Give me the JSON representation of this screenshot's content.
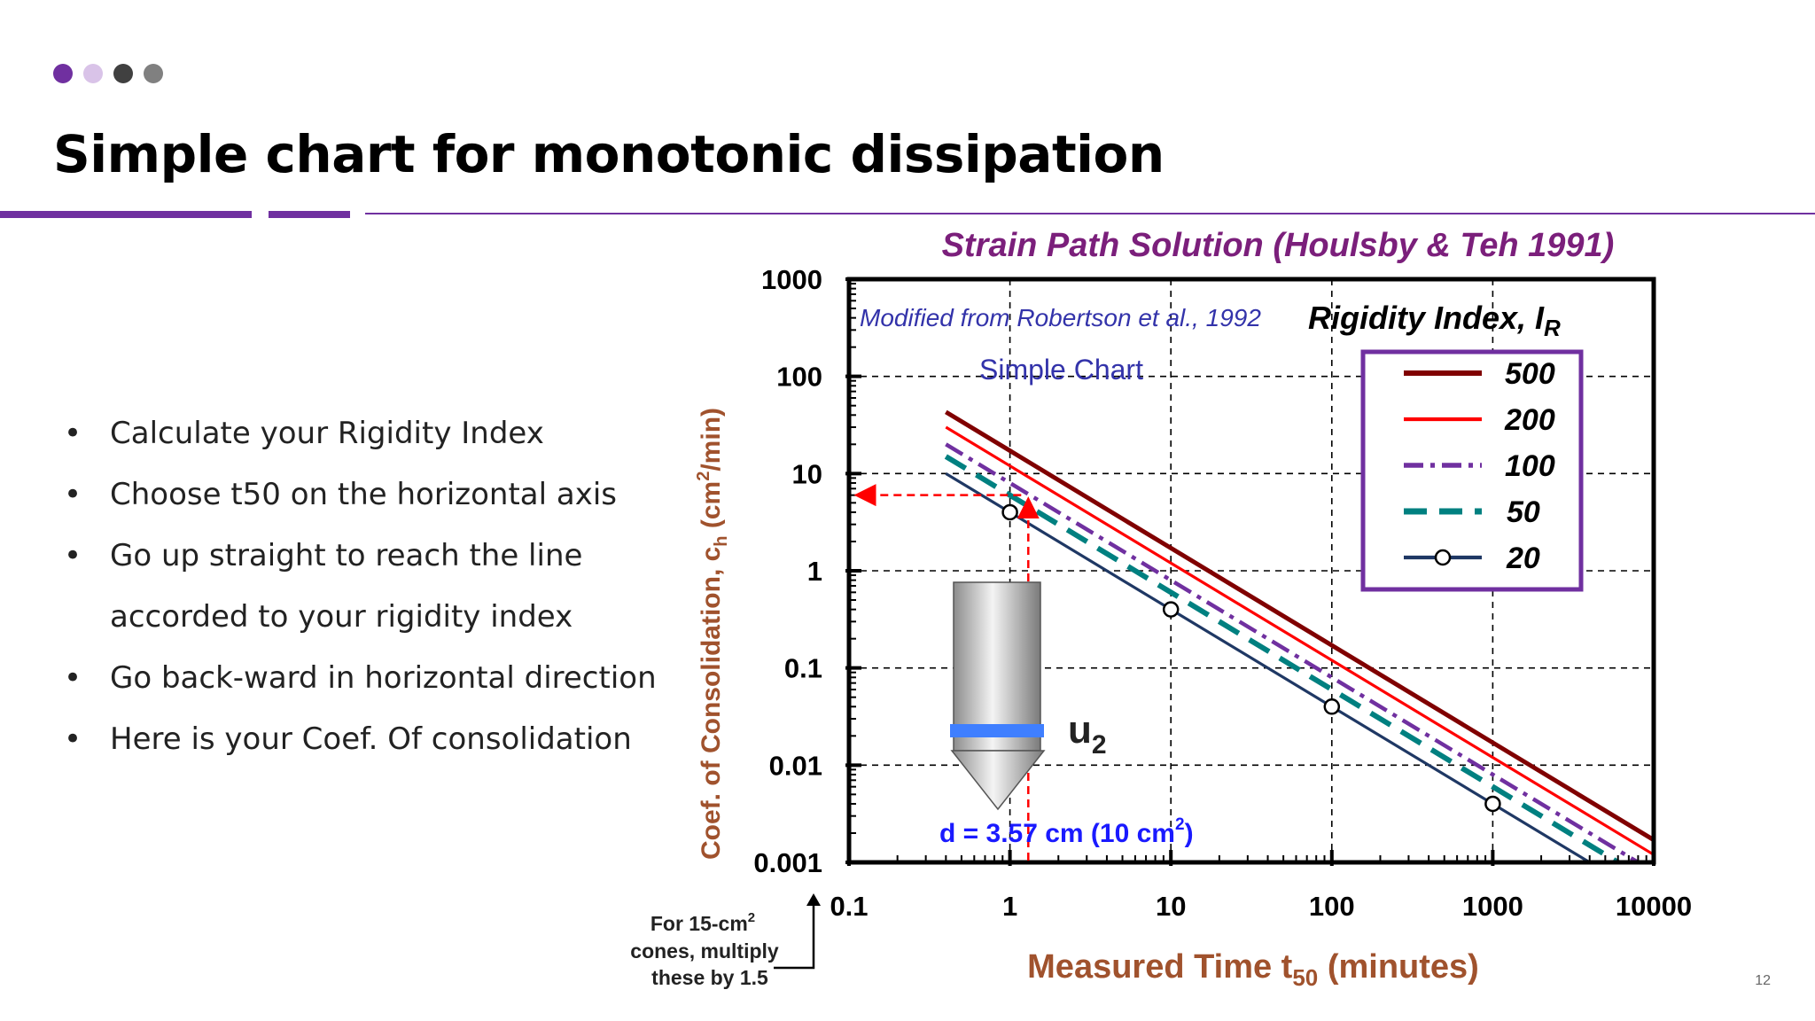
{
  "slide": {
    "title": "Simple chart for monotonic dissipation",
    "page_number": "12",
    "accent_colors": [
      "#7030a0",
      "#d9c3e8",
      "#404040",
      "#808080"
    ],
    "bullets": [
      {
        "lines": [
          "Calculate your Rigidity Index"
        ]
      },
      {
        "lines": [
          "Choose t50 on the horizontal axis"
        ]
      },
      {
        "lines": [
          "Go up straight to reach the line",
          "accorded to your rigidity index"
        ]
      },
      {
        "lines": [
          "Go back-ward in horizontal direction"
        ]
      },
      {
        "lines": [
          "Here is your Coef. Of consolidation"
        ]
      }
    ]
  },
  "chart_data": {
    "type": "line",
    "title": "Strain Path Solution (Houlsby & Teh 1991)",
    "subtitle": "Modified from Robertson et al., 1992",
    "inner_label": "Simple Chart",
    "xlabel_main": "Measured Time t",
    "xlabel_sub": "50",
    "xlabel_tail": " (minutes)",
    "ylabel": "Coef. of Consolidation, c",
    "ylabel_sub": "h",
    "ylabel_tail": " (cm",
    "ylabel_sup": "2",
    "ylabel_end": "/min)",
    "x_scale": "log",
    "y_scale": "log",
    "xlim": [
      0.1,
      10000
    ],
    "ylim": [
      0.001,
      1000
    ],
    "x_ticks": [
      "0.1",
      "1",
      "10",
      "100",
      "1000",
      "10000"
    ],
    "y_ticks": [
      "0.001",
      "0.01",
      "0.1",
      "1",
      "10",
      "100",
      "1000"
    ],
    "grid": true,
    "legend_title": "Rigidity Index, I",
    "legend_title_sub": "R",
    "legend_position": "top-right",
    "series": [
      {
        "name": "500",
        "x": [
          0.4,
          10000
        ],
        "y": [
          43,
          0.0017
        ],
        "color": "#800000",
        "dash": "solid"
      },
      {
        "name": "200",
        "x": [
          0.4,
          10000
        ],
        "y": [
          30,
          0.0012
        ],
        "color": "#ff0000",
        "dash": "solid"
      },
      {
        "name": "100",
        "x": [
          0.4,
          10000
        ],
        "y": [
          20,
          0.0008
        ],
        "color": "#7030a0",
        "dash": "dashdot"
      },
      {
        "name": "50",
        "x": [
          0.4,
          10000
        ],
        "y": [
          15,
          0.0006
        ],
        "color": "#008080",
        "dash": "dash"
      },
      {
        "name": "20",
        "x": [
          0.4,
          10000
        ],
        "y": [
          10,
          0.0004
        ],
        "color": "#1f3864",
        "dash": "solid-markers",
        "markers_x": [
          1,
          10,
          100,
          1000
        ]
      }
    ],
    "example": {
      "t50": 1.3,
      "ch": 6
    },
    "probe_label": "u",
    "probe_label_sub": "2",
    "probe_note": "d =  3.57 cm  (10 cm",
    "probe_note_sup": "2",
    "probe_note_end": ")",
    "side_note": [
      "For 15-cm",
      "cones, multiply",
      "these by 1.5"
    ],
    "side_note_sup": "2"
  }
}
